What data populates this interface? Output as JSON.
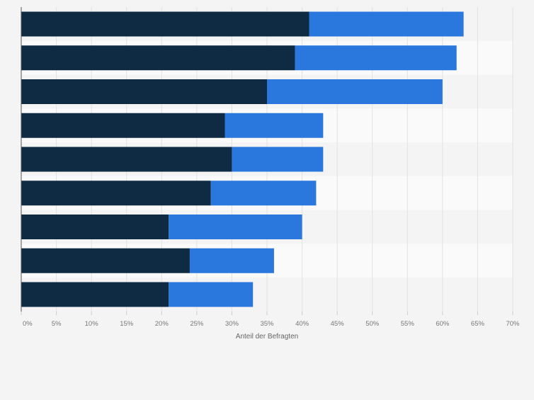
{
  "chart_data": {
    "type": "bar",
    "orientation": "horizontal",
    "stacked": true,
    "categories": [
      "",
      "",
      "",
      "",
      "",
      "",
      "",
      "",
      ""
    ],
    "series": [
      {
        "color": "#0f2a43",
        "values": [
          41,
          39,
          35,
          29,
          30,
          27,
          21,
          24,
          21
        ]
      },
      {
        "color": "#2a78de",
        "values": [
          22,
          23,
          25,
          14,
          13,
          15,
          19,
          12,
          12
        ]
      }
    ],
    "xlabel": "Anteil der Befragten",
    "ylabel": "",
    "xlim": [
      0,
      70
    ],
    "x_ticks": [
      "0%",
      "5%",
      "10%",
      "15%",
      "20%",
      "25%",
      "30%",
      "35%",
      "40%",
      "45%",
      "50%",
      "55%",
      "60%",
      "65%",
      "70%"
    ],
    "grid": true,
    "legend": "none"
  }
}
